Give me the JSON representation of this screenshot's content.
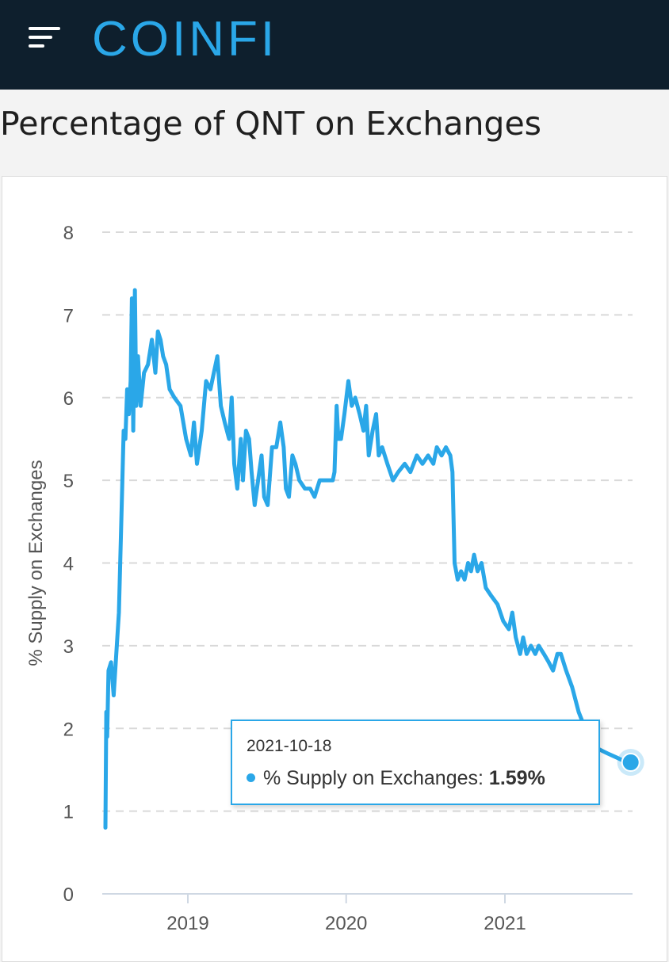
{
  "header": {
    "logo_text": "COINFI",
    "brand_color": "#2aa7e8",
    "background": "#0e1f2d",
    "menu_icon": "hamburger-menu-icon"
  },
  "page": {
    "title": "Percentage of QNT on Exchanges"
  },
  "tooltip": {
    "date": "2021-10-18",
    "label": "% Supply on Exchanges:",
    "value": "1.59%"
  },
  "chart_data": {
    "type": "line",
    "ylabel": "% Supply on Exchanges",
    "ylim": [
      0,
      8
    ],
    "yticks": [
      0,
      1,
      2,
      3,
      4,
      5,
      6,
      7,
      8
    ],
    "xticks": [
      "2019",
      "2020",
      "2021"
    ],
    "grid": "horizontal dashed",
    "line_color": "#2aa7e8",
    "highlighted_point": {
      "x": "2021-10-18",
      "y": 1.59
    },
    "series": [
      {
        "name": "% Supply on Exchanges",
        "points": [
          [
            "2018-06-25",
            0.8
          ],
          [
            "2018-06-27",
            2.2
          ],
          [
            "2018-06-29",
            1.9
          ],
          [
            "2018-07-02",
            2.7
          ],
          [
            "2018-07-08",
            2.8
          ],
          [
            "2018-07-14",
            2.4
          ],
          [
            "2018-07-20",
            2.9
          ],
          [
            "2018-07-26",
            3.4
          ],
          [
            "2018-08-01",
            4.6
          ],
          [
            "2018-08-06",
            5.6
          ],
          [
            "2018-08-10",
            5.5
          ],
          [
            "2018-08-14",
            6.1
          ],
          [
            "2018-08-18",
            5.8
          ],
          [
            "2018-08-22",
            6.2
          ],
          [
            "2018-08-25",
            7.2
          ],
          [
            "2018-08-28",
            5.6
          ],
          [
            "2018-09-01",
            7.3
          ],
          [
            "2018-09-04",
            5.9
          ],
          [
            "2018-09-08",
            6.5
          ],
          [
            "2018-09-14",
            5.9
          ],
          [
            "2018-09-22",
            6.3
          ],
          [
            "2018-10-01",
            6.4
          ],
          [
            "2018-10-10",
            6.7
          ],
          [
            "2018-10-18",
            6.3
          ],
          [
            "2018-10-24",
            6.8
          ],
          [
            "2018-10-30",
            6.7
          ],
          [
            "2018-11-05",
            6.5
          ],
          [
            "2018-11-12",
            6.4
          ],
          [
            "2018-11-20",
            6.1
          ],
          [
            "2018-12-01",
            6.0
          ],
          [
            "2018-12-15",
            5.9
          ],
          [
            "2018-12-28",
            5.5
          ],
          [
            "2019-01-08",
            5.3
          ],
          [
            "2019-01-15",
            5.7
          ],
          [
            "2019-01-22",
            5.2
          ],
          [
            "2019-02-02",
            5.6
          ],
          [
            "2019-02-12",
            6.2
          ],
          [
            "2019-02-22",
            6.1
          ],
          [
            "2019-03-02",
            6.3
          ],
          [
            "2019-03-10",
            6.5
          ],
          [
            "2019-03-18",
            5.9
          ],
          [
            "2019-03-27",
            5.7
          ],
          [
            "2019-04-06",
            5.5
          ],
          [
            "2019-04-12",
            6.0
          ],
          [
            "2019-04-18",
            5.2
          ],
          [
            "2019-04-25",
            4.9
          ],
          [
            "2019-05-03",
            5.5
          ],
          [
            "2019-05-08",
            5.0
          ],
          [
            "2019-05-15",
            5.6
          ],
          [
            "2019-05-22",
            5.5
          ],
          [
            "2019-05-28",
            5.1
          ],
          [
            "2019-06-04",
            4.7
          ],
          [
            "2019-06-12",
            5.0
          ],
          [
            "2019-06-20",
            5.3
          ],
          [
            "2019-06-26",
            4.8
          ],
          [
            "2019-07-04",
            4.7
          ],
          [
            "2019-07-14",
            5.4
          ],
          [
            "2019-07-24",
            5.4
          ],
          [
            "2019-08-02",
            5.7
          ],
          [
            "2019-08-10",
            5.4
          ],
          [
            "2019-08-15",
            4.9
          ],
          [
            "2019-08-22",
            4.8
          ],
          [
            "2019-08-30",
            5.3
          ],
          [
            "2019-09-06",
            5.2
          ],
          [
            "2019-09-15",
            5.0
          ],
          [
            "2019-09-28",
            4.9
          ],
          [
            "2019-10-10",
            4.9
          ],
          [
            "2019-10-20",
            4.8
          ],
          [
            "2019-11-01",
            5.0
          ],
          [
            "2019-11-15",
            5.0
          ],
          [
            "2019-12-01",
            5.0
          ],
          [
            "2019-12-05",
            5.1
          ],
          [
            "2019-12-10",
            5.9
          ],
          [
            "2019-12-14",
            5.5
          ],
          [
            "2019-12-20",
            5.5
          ],
          [
            "2019-12-28",
            5.8
          ],
          [
            "2020-01-06",
            6.2
          ],
          [
            "2020-01-14",
            5.9
          ],
          [
            "2020-01-22",
            6.0
          ],
          [
            "2020-02-01",
            5.8
          ],
          [
            "2020-02-10",
            5.6
          ],
          [
            "2020-02-16",
            5.9
          ],
          [
            "2020-02-22",
            5.3
          ],
          [
            "2020-03-02",
            5.6
          ],
          [
            "2020-03-10",
            5.8
          ],
          [
            "2020-03-16",
            5.3
          ],
          [
            "2020-03-24",
            5.4
          ],
          [
            "2020-04-05",
            5.2
          ],
          [
            "2020-04-18",
            5.0
          ],
          [
            "2020-04-30",
            5.1
          ],
          [
            "2020-05-15",
            5.2
          ],
          [
            "2020-05-28",
            5.1
          ],
          [
            "2020-06-12",
            5.3
          ],
          [
            "2020-06-25",
            5.2
          ],
          [
            "2020-07-08",
            5.3
          ],
          [
            "2020-07-20",
            5.2
          ],
          [
            "2020-07-28",
            5.4
          ],
          [
            "2020-08-08",
            5.3
          ],
          [
            "2020-08-18",
            5.4
          ],
          [
            "2020-08-28",
            5.3
          ],
          [
            "2020-09-02",
            5.1
          ],
          [
            "2020-09-07",
            4.0
          ],
          [
            "2020-09-14",
            3.8
          ],
          [
            "2020-09-22",
            3.9
          ],
          [
            "2020-09-30",
            3.8
          ],
          [
            "2020-10-08",
            4.0
          ],
          [
            "2020-10-15",
            3.9
          ],
          [
            "2020-10-22",
            4.1
          ],
          [
            "2020-10-30",
            3.9
          ],
          [
            "2020-11-08",
            4.0
          ],
          [
            "2020-11-18",
            3.7
          ],
          [
            "2020-12-01",
            3.6
          ],
          [
            "2020-12-15",
            3.5
          ],
          [
            "2020-12-28",
            3.3
          ],
          [
            "2021-01-10",
            3.2
          ],
          [
            "2021-01-18",
            3.4
          ],
          [
            "2021-01-26",
            3.1
          ],
          [
            "2021-02-05",
            2.9
          ],
          [
            "2021-02-12",
            3.1
          ],
          [
            "2021-02-20",
            2.9
          ],
          [
            "2021-03-02",
            3.0
          ],
          [
            "2021-03-12",
            2.9
          ],
          [
            "2021-03-20",
            3.0
          ],
          [
            "2021-04-01",
            2.9
          ],
          [
            "2021-04-12",
            2.8
          ],
          [
            "2021-04-22",
            2.7
          ],
          [
            "2021-05-02",
            2.9
          ],
          [
            "2021-05-10",
            2.9
          ],
          [
            "2021-05-22",
            2.7
          ],
          [
            "2021-06-05",
            2.5
          ],
          [
            "2021-06-20",
            2.2
          ],
          [
            "2021-07-05",
            2.0
          ],
          [
            "2021-07-20",
            1.85
          ],
          [
            "2021-08-05",
            1.75
          ],
          [
            "2021-08-25",
            1.7
          ],
          [
            "2021-09-15",
            1.65
          ],
          [
            "2021-10-05",
            1.6
          ],
          [
            "2021-10-18",
            1.59
          ]
        ]
      }
    ]
  }
}
